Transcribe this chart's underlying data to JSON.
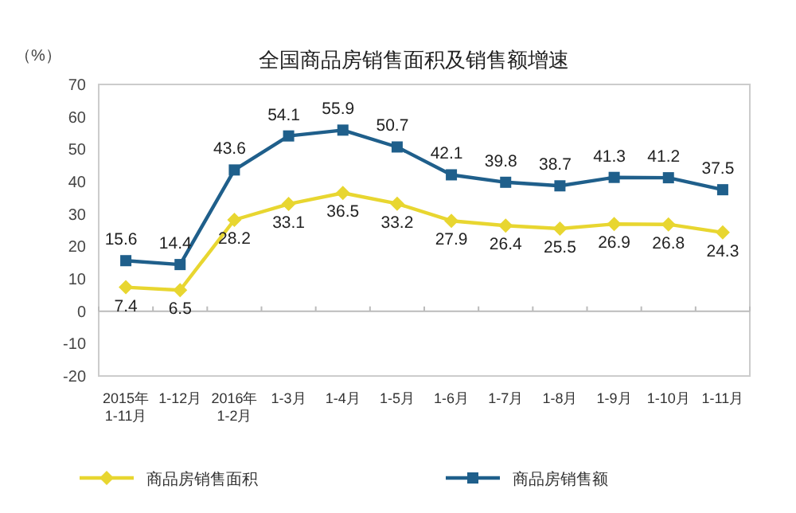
{
  "chart_data": {
    "type": "line",
    "title": "全国商品房销售面积及销售额增速",
    "ylabel": "（%）",
    "categories": [
      "2015年\n1-11月",
      "1-12月",
      "2016年\n1-2月",
      "1-3月",
      "1-4月",
      "1-5月",
      "1-6月",
      "1-7月",
      "1-8月",
      "1-9月",
      "1-10月",
      "1-11月"
    ],
    "series": [
      {
        "name": "商品房销售面积",
        "color": "#e8d630",
        "marker": "diamond",
        "values": [
          7.4,
          6.5,
          28.2,
          33.1,
          36.5,
          33.2,
          27.9,
          26.4,
          25.5,
          26.9,
          26.8,
          24.3
        ]
      },
      {
        "name": "商品房销售额",
        "color": "#1f5f8b",
        "marker": "square",
        "values": [
          15.6,
          14.4,
          43.6,
          54.1,
          55.9,
          50.7,
          42.1,
          39.8,
          38.7,
          41.3,
          41.2,
          37.5
        ]
      }
    ],
    "ylim": [
      -20,
      70
    ],
    "yticks": [
      -20,
      -10,
      0,
      10,
      20,
      30,
      40,
      50,
      60,
      70
    ],
    "data_labels": true,
    "legend": "bottom"
  }
}
